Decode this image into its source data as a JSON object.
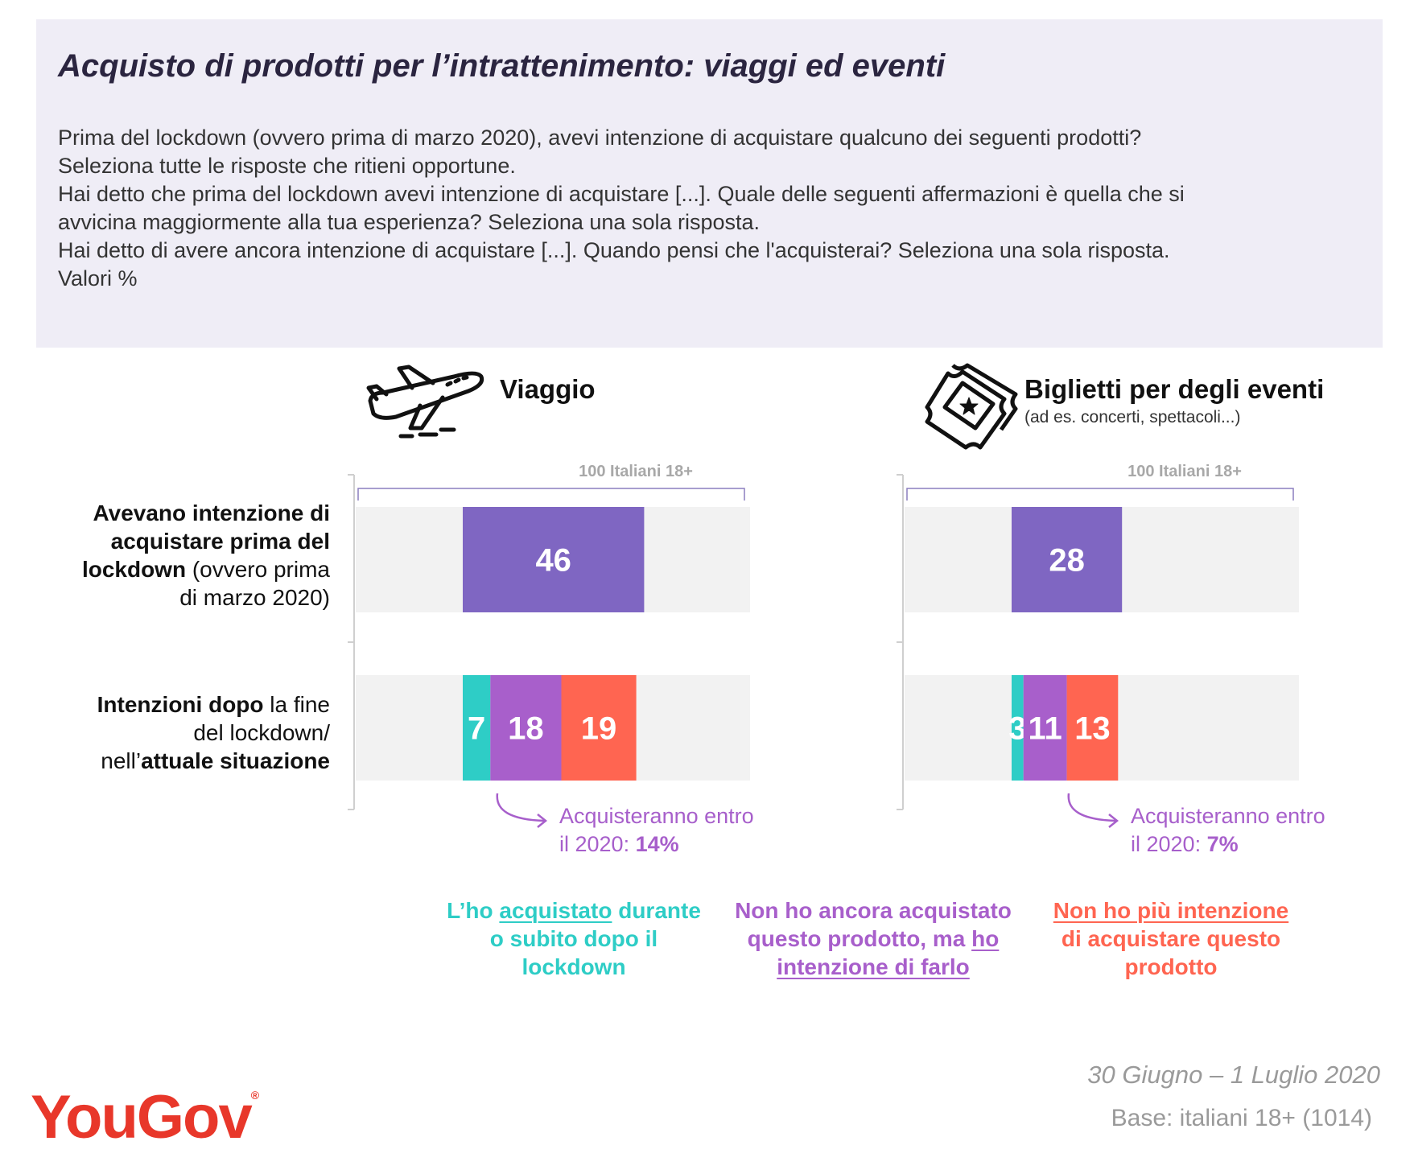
{
  "header": {
    "title": "Acquisto di prodotti per l’intrattenimento: viaggi ed eventi",
    "description_lines": [
      "Prima del lockdown (ovvero prima di marzo 2020), avevi intenzione di acquistare qualcuno dei seguenti prodotti?",
      "Seleziona tutte le risposte che ritieni opportune.",
      "Hai detto che prima del lockdown avevi intenzione di acquistare [...]. Quale delle seguenti affermazioni è quella che si",
      "avvicina maggiormente alla tua esperienza? Seleziona una sola risposta.",
      "Hai detto di avere ancora intenzione di acquistare [...]. Quando pensi che l'acquisterai? Seleziona una sola risposta.",
      "Valori %"
    ]
  },
  "row_labels": {
    "before": {
      "line1": "Avevano intenzione di",
      "line2": "acquistare prima del",
      "line3_bold": "lockdown",
      "line3_rest": " (ovvero prima",
      "line4": "di marzo 2020)"
    },
    "after": {
      "line1_bold": "Intenzioni dopo",
      "line1_rest": " la fine",
      "line2": "del lockdown/",
      "line3_pre": "nell’",
      "line3_bold": "attuale situazione"
    }
  },
  "legend": {
    "bought": {
      "pre": "L’ho ",
      "underlined": "acquistato",
      "post": " durante",
      "line2": "o subito dopo il",
      "line3": "lockdown"
    },
    "intend": {
      "line1": "Non ho ancora acquistato",
      "line2_pre": "questo prodotto, ma ",
      "line2_underlined": "ho",
      "line3_underlined": "intenzione di farlo"
    },
    "no_more": {
      "line1_underlined": "Non ho più intenzione",
      "line2": "di acquistare questo",
      "line3": "prodotto"
    }
  },
  "colors": {
    "before": "#7f66c2",
    "bought": "#2ecdc6",
    "intend": "#a85fcb",
    "no_more": "#ff6551",
    "track": "#f2f2f2",
    "bracket": "#8c7fbf"
  },
  "chart_data": [
    {
      "type": "bar",
      "title": "Viaggio",
      "subtitle": "",
      "icon": "airplane-icon",
      "scale_label": "100 Italiani 18+",
      "xlim": [
        0,
        100
      ],
      "rows": [
        {
          "key": "before",
          "segments": [
            {
              "series": "before",
              "value": 46
            }
          ]
        },
        {
          "key": "after",
          "segments": [
            {
              "series": "bought",
              "value": 7
            },
            {
              "series": "intend",
              "value": 18
            },
            {
              "series": "no_more",
              "value": 19
            }
          ]
        }
      ],
      "annotation": {
        "text": "Acquisteranno entro",
        "line2_pre": "il 2020: ",
        "value": "14%"
      }
    },
    {
      "type": "bar",
      "title": "Biglietti per degli eventi",
      "subtitle": "(ad es. concerti, spettacoli...)",
      "icon": "ticket-icon",
      "scale_label": "100 Italiani 18+",
      "xlim": [
        0,
        100
      ],
      "rows": [
        {
          "key": "before",
          "segments": [
            {
              "series": "before",
              "value": 28
            }
          ]
        },
        {
          "key": "after",
          "segments": [
            {
              "series": "bought",
              "value": 3
            },
            {
              "series": "intend",
              "value": 11
            },
            {
              "series": "no_more",
              "value": 13
            }
          ]
        }
      ],
      "annotation": {
        "text": "Acquisteranno entro",
        "line2_pre": "il 2020: ",
        "value": "7%"
      }
    }
  ],
  "footer": {
    "date": "30 Giugno – 1 Luglio 2020",
    "base": "Base: italiani 18+ (1014)",
    "logo": "YouGov",
    "logo_mark": "®"
  }
}
